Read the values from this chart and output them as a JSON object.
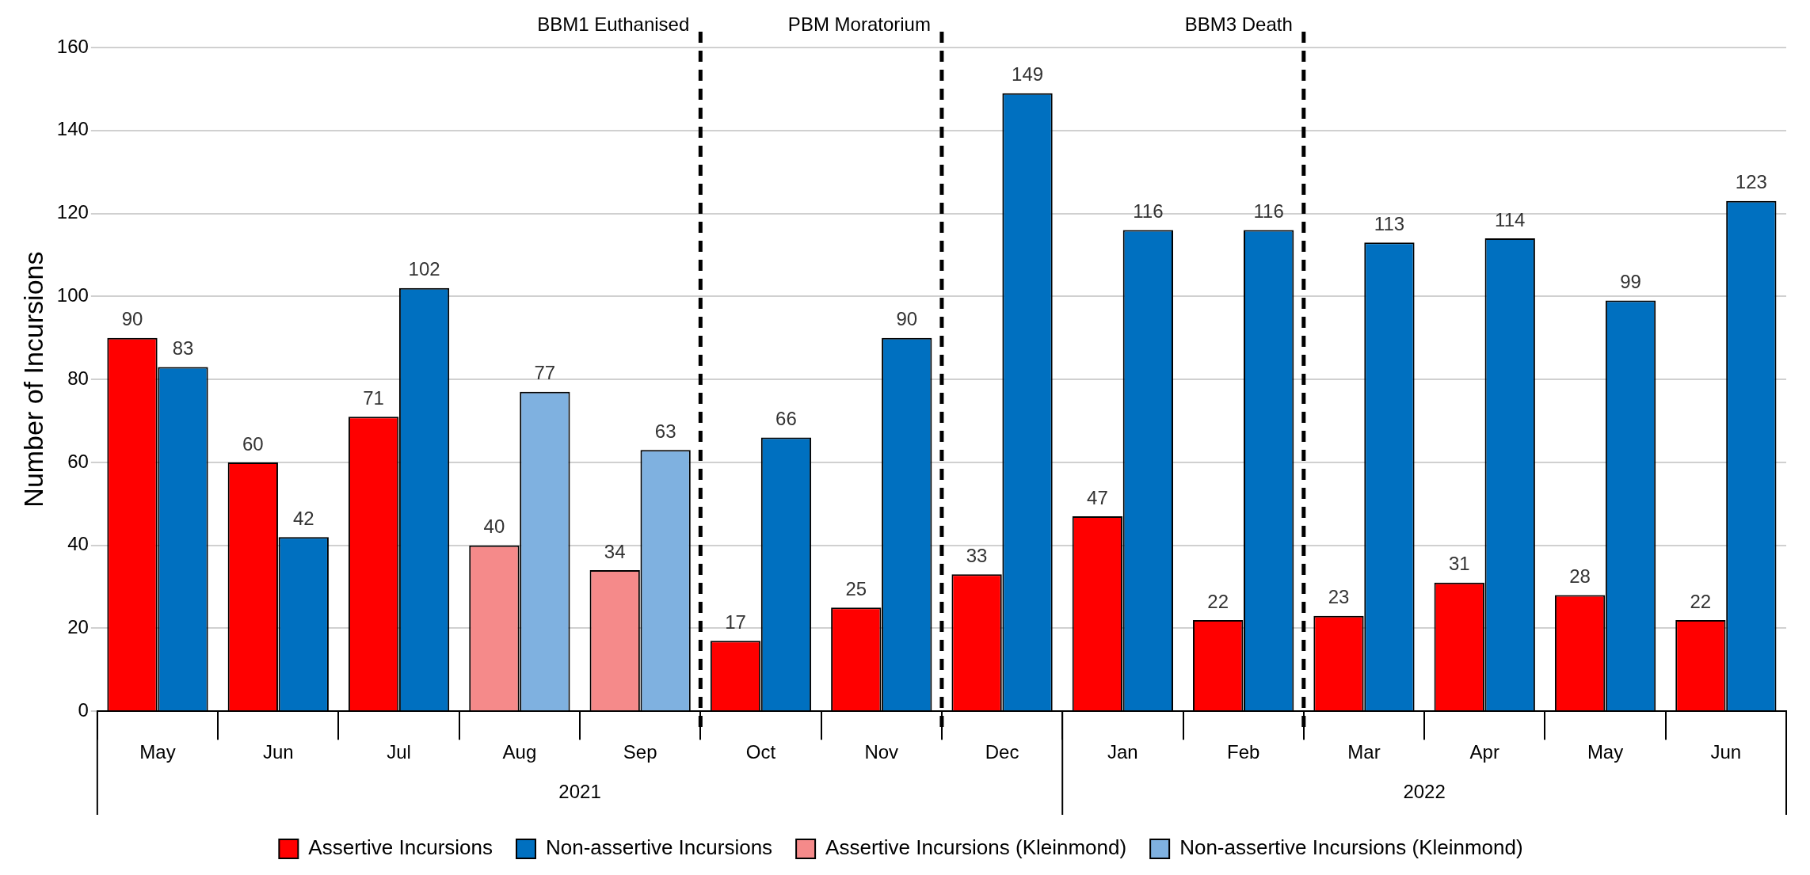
{
  "chart_data": {
    "type": "bar",
    "ylabel": "Number of Incursions",
    "categories": [
      "May",
      "Jun",
      "Jul",
      "Aug",
      "Sep",
      "Oct",
      "Nov",
      "Dec",
      "Jan",
      "Feb",
      "Mar",
      "Apr",
      "May",
      "Jun"
    ],
    "series": [
      {
        "name": "Assertive Incursions",
        "color": "#ff0000",
        "values": [
          90,
          60,
          71,
          null,
          null,
          17,
          25,
          33,
          47,
          22,
          23,
          31,
          28,
          22
        ]
      },
      {
        "name": "Non-assertive Incursions",
        "color": "#0070c0",
        "values": [
          83,
          42,
          102,
          null,
          null,
          66,
          90,
          149,
          116,
          116,
          113,
          114,
          99,
          123
        ]
      },
      {
        "name": "Assertive Incursions (Kleinmond)",
        "color": "#f58a8a",
        "values": [
          null,
          null,
          null,
          40,
          34,
          null,
          null,
          null,
          null,
          null,
          null,
          null,
          null,
          null
        ]
      },
      {
        "name": "Non-assertive Incursions (Kleinmond)",
        "color": "#7fb1e0",
        "values": [
          null,
          null,
          null,
          77,
          63,
          null,
          null,
          null,
          null,
          null,
          null,
          null,
          null,
          null
        ]
      }
    ],
    "ylim": [
      0,
      160
    ],
    "yticks": [
      0,
      20,
      40,
      60,
      80,
      100,
      120,
      140,
      160
    ],
    "grid": "y",
    "legend": "bottom",
    "data_labels": true,
    "annotations": [
      "BBM1 Euthanised",
      "PBM Moratorium",
      "BBM3 Death",
      "2021",
      "2022"
    ]
  }
}
